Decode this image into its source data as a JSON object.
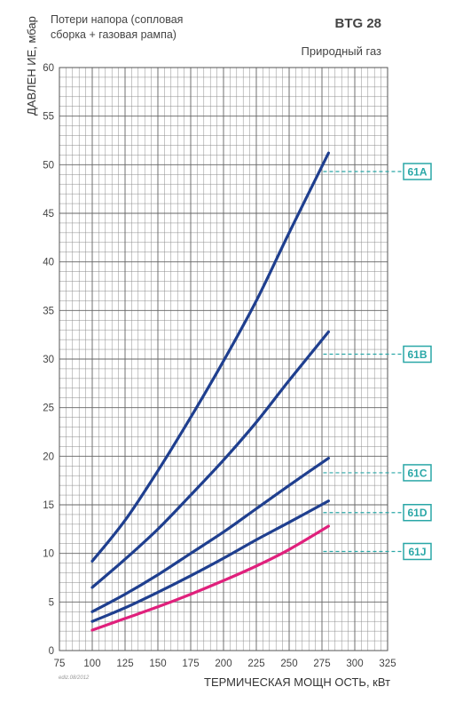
{
  "header": {
    "subtitle_line1": "Потери напора (сопловая",
    "subtitle_line2": "сборка + газовая рампа)",
    "model": "BTG 28",
    "gas": "Природный газ"
  },
  "edition": "ediz.08/2012",
  "colors": {
    "grid": "#8c8c8c",
    "curve_blue": "#1f3f8f",
    "curve_magenta": "#e0207c",
    "label_teal": "#2aa7a7"
  },
  "chart_data": {
    "type": "line",
    "title": "BTG 28",
    "xlabel": "ТЕРМИЧЕСКАЯ МОЩН ОСТЬ, кВт",
    "ylabel": "ДАВЛЕН ИЕ, мбар",
    "xlim": [
      75,
      325
    ],
    "ylim": [
      0,
      60
    ],
    "xticks": [
      75,
      100,
      125,
      150,
      175,
      200,
      225,
      250,
      275,
      300,
      325
    ],
    "yticks": [
      0,
      5,
      10,
      15,
      20,
      25,
      30,
      35,
      40,
      45,
      50,
      55,
      60
    ],
    "grid": true,
    "x": [
      100,
      125,
      150,
      175,
      200,
      225,
      250,
      280
    ],
    "series": [
      {
        "name": "61A",
        "color": "#1f3f8f",
        "values": [
          9.2,
          13.4,
          18.5,
          24.0,
          29.8,
          36.0,
          43.0,
          51.2
        ]
      },
      {
        "name": "61B",
        "color": "#1f3f8f",
        "values": [
          6.5,
          9.4,
          12.5,
          16.0,
          19.6,
          23.5,
          27.8,
          32.8
        ]
      },
      {
        "name": "61C",
        "color": "#1f3f8f",
        "values": [
          4.0,
          5.8,
          7.8,
          10.0,
          12.2,
          14.6,
          17.0,
          19.8
        ]
      },
      {
        "name": "61D",
        "color": "#1f3f8f",
        "values": [
          3.0,
          4.4,
          6.0,
          7.7,
          9.5,
          11.4,
          13.2,
          15.4
        ]
      },
      {
        "name": "61J",
        "color": "#e0207c",
        "values": [
          2.1,
          3.3,
          4.5,
          5.8,
          7.2,
          8.7,
          10.4,
          12.8
        ]
      }
    ],
    "label_y": [
      49.3,
      30.5,
      18.3,
      14.2,
      10.2
    ]
  }
}
